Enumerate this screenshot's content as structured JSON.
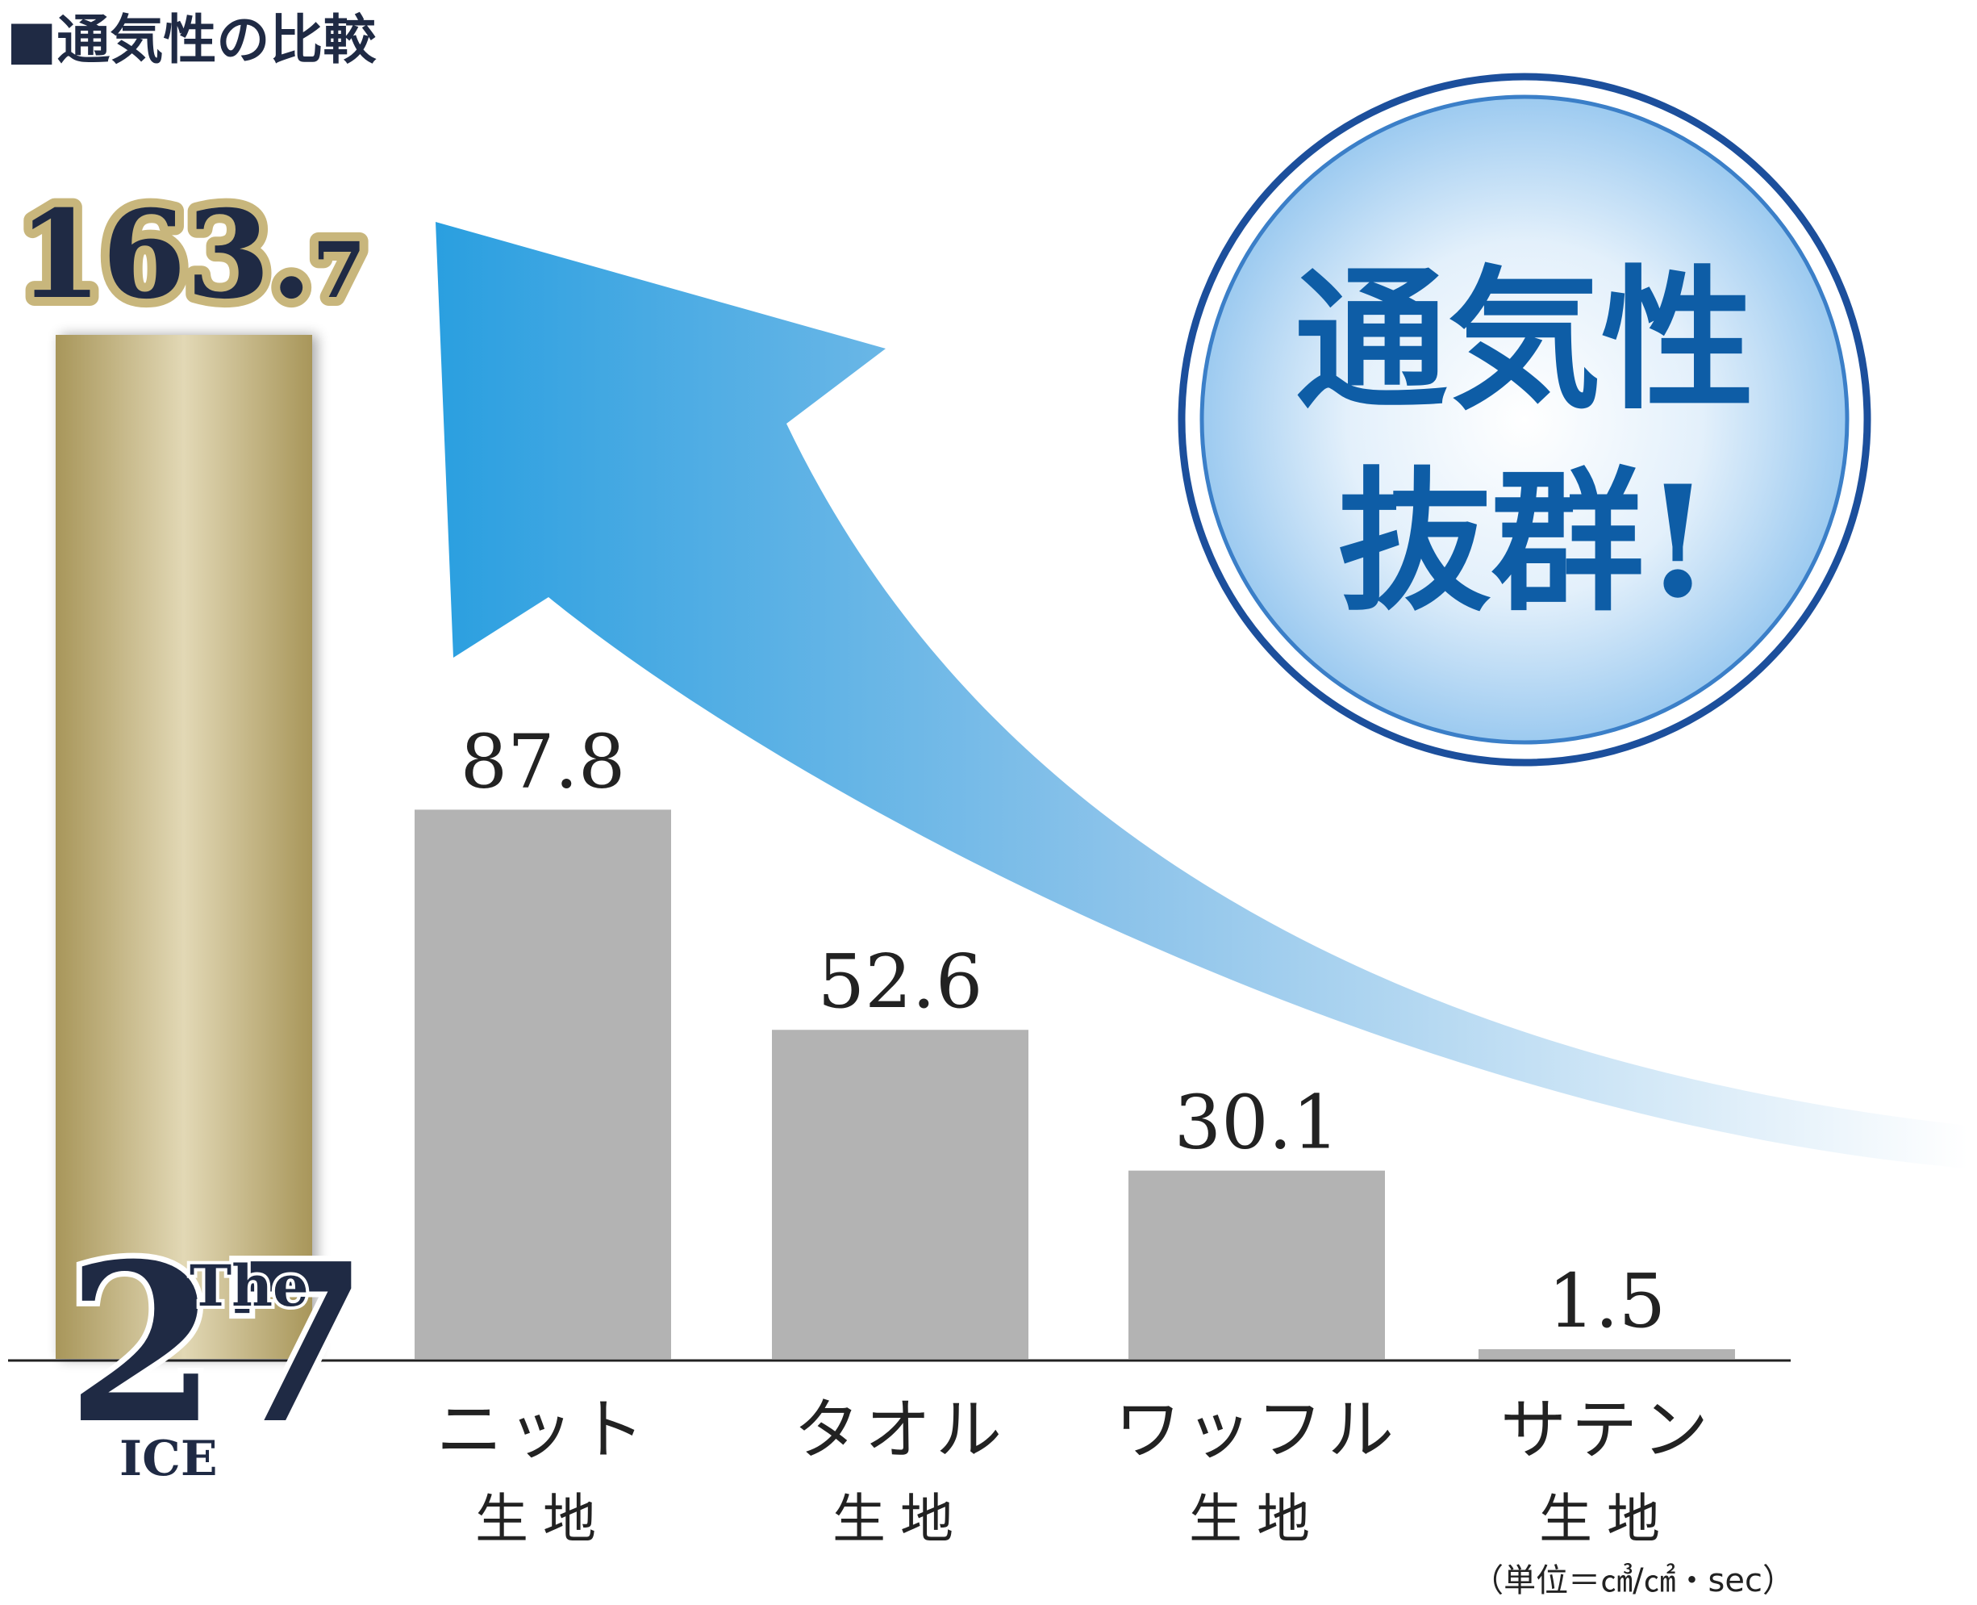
{
  "title": "■通気性の比較",
  "colors": {
    "navy": "#1f2a44",
    "gold_dark": "#a8965a",
    "gold_light": "#e2d8b5",
    "bar_gray": "#b3b3b3",
    "arrow_blue": "#2a9fe0",
    "bubble_text": "#0e5da6",
    "bubble_ring": "#1c4f9c"
  },
  "bubble": {
    "line1": "通気性",
    "line2": "抜群!"
  },
  "logo": {
    "big_digits": "27",
    "the": "The",
    "ice": "ICE"
  },
  "highlight": {
    "integer_part": "163.",
    "decimal_part": "7"
  },
  "unit": "（単位＝㎤/㎠・sec）",
  "chart_data": {
    "type": "bar",
    "categories": [
      "",
      "ニット 生地",
      "タオル 生地",
      "ワッフル 生地",
      "サテン 生地"
    ],
    "category_lines": [
      [
        "",
        ""
      ],
      [
        "ニット",
        "生地"
      ],
      [
        "タオル",
        "生地"
      ],
      [
        "ワッフル",
        "生地"
      ],
      [
        "サテン",
        "生地"
      ]
    ],
    "values": [
      163.7,
      87.8,
      52.6,
      30.1,
      1.5
    ],
    "value_labels": [
      "163.7",
      "87.8",
      "52.6",
      "30.1",
      "1.5"
    ],
    "ylim": [
      0,
      163.7
    ],
    "grid": false,
    "axes_visible": false,
    "highlight_index": 0
  }
}
